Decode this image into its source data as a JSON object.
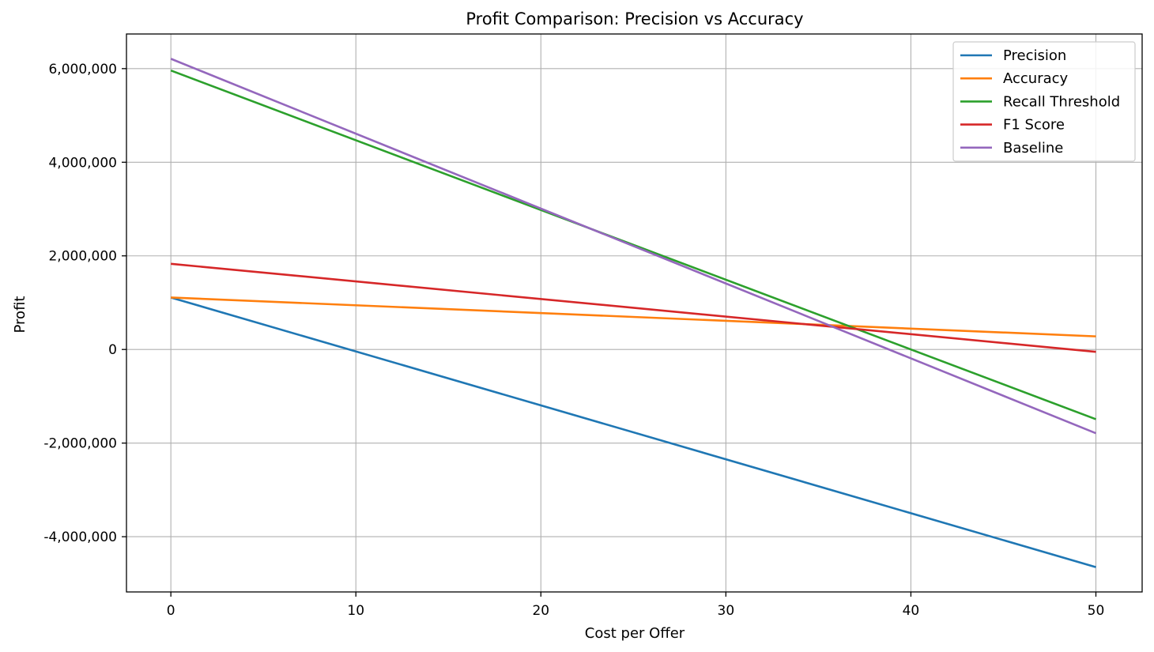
{
  "chart_data": {
    "type": "line",
    "title": "Profit Comparison: Precision vs Accuracy",
    "xlabel": "Cost per Offer",
    "ylabel": "Profit",
    "xlim": [
      -2.4,
      52.5
    ],
    "ylim": [
      -5180000,
      6740000
    ],
    "xticks": [
      0,
      10,
      20,
      30,
      40,
      50
    ],
    "xtick_labels": [
      "0",
      "10",
      "20",
      "30",
      "40",
      "50"
    ],
    "yticks": [
      -4000000,
      -2000000,
      0,
      2000000,
      4000000,
      6000000
    ],
    "ytick_labels": [
      "-4,000,000",
      "-2,000,000",
      "0",
      "2,000,000",
      "4,000,000",
      "6,000,000"
    ],
    "grid": true,
    "legend_position": "top-right",
    "x": [
      0,
      50
    ],
    "series": [
      {
        "name": "Precision",
        "color": "#1f77b4",
        "values": [
          1110000,
          -4650000
        ]
      },
      {
        "name": "Accuracy",
        "color": "#ff7f0e",
        "values": [
          1110000,
          280000
        ]
      },
      {
        "name": "Recall Threshold",
        "color": "#2ca02c",
        "values": [
          5960000,
          -1490000
        ]
      },
      {
        "name": "F1 Score",
        "color": "#d62728",
        "values": [
          1830000,
          -50000
        ]
      },
      {
        "name": "Baseline",
        "color": "#9467bd",
        "values": [
          6210000,
          -1790000
        ]
      }
    ]
  }
}
